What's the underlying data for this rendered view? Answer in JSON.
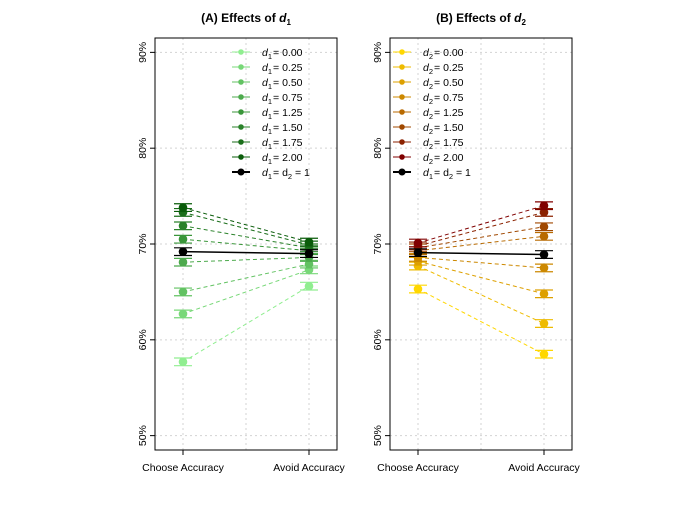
{
  "chart_data": [
    {
      "type": "line",
      "title_prefix": "(A) Effects of ",
      "title_var": "d",
      "title_sub": "1",
      "categories": [
        "Choose Accuracy",
        "Avoid Accuracy"
      ],
      "ylim": [
        48.5,
        91.5
      ],
      "yticks": [
        50,
        60,
        70,
        80,
        90
      ],
      "ytick_labels": [
        "50%",
        "60%",
        "70%",
        "80%",
        "90%"
      ],
      "grid": true,
      "legend_position": "top-right",
      "series": [
        {
          "name": "d1 = 0.00",
          "var": "d",
          "sub": "1",
          "rhs": "= 0.00",
          "color": "#90EE90",
          "values": [
            57.7,
            65.6
          ],
          "err": 0.4
        },
        {
          "name": "d1 = 0.25",
          "var": "d",
          "sub": "1",
          "rhs": "= 0.25",
          "color": "#78D878",
          "values": [
            62.7,
            67.3
          ],
          "err": 0.4
        },
        {
          "name": "d1 = 0.50",
          "var": "d",
          "sub": "1",
          "rhs": "= 0.50",
          "color": "#62C262",
          "values": [
            65.0,
            67.9
          ],
          "err": 0.4
        },
        {
          "name": "d1 = 0.75",
          "var": "d",
          "sub": "1",
          "rhs": "= 0.75",
          "color": "#4DAA4D",
          "values": [
            68.1,
            68.6
          ],
          "err": 0.4
        },
        {
          "name": "d1 = 1.25",
          "var": "d",
          "sub": "1",
          "rhs": "= 1.25",
          "color": "#3A963A",
          "values": [
            70.5,
            69.3
          ],
          "err": 0.4
        },
        {
          "name": "d1 = 1.50",
          "var": "d",
          "sub": "1",
          "rhs": "= 1.50",
          "color": "#2A822A",
          "values": [
            71.9,
            69.6
          ],
          "err": 0.4
        },
        {
          "name": "d1 = 1.75",
          "var": "d",
          "sub": "1",
          "rhs": "= 1.75",
          "color": "#1A6E1A",
          "values": [
            73.3,
            69.9
          ],
          "err": 0.4
        },
        {
          "name": "d1 = 2.00",
          "var": "d",
          "sub": "1",
          "rhs": "= 2.00",
          "color": "#0A5C0A",
          "values": [
            73.8,
            70.2
          ],
          "err": 0.4
        },
        {
          "name": "d1 = d2 = 1",
          "var": "d",
          "sub": "1",
          "rhs": "= d",
          "rhs_sub": "2",
          "rhs2": " = 1",
          "color": "#000000",
          "values": [
            69.2,
            69.0
          ],
          "err": 0.4,
          "solid": true
        }
      ]
    },
    {
      "type": "line",
      "title_prefix": "(B) Effects of ",
      "title_var": "d",
      "title_sub": "2",
      "categories": [
        "Choose Accuracy",
        "Avoid Accuracy"
      ],
      "ylim": [
        48.5,
        91.5
      ],
      "yticks": [
        50,
        60,
        70,
        80,
        90
      ],
      "ytick_labels": [
        "50%",
        "60%",
        "70%",
        "80%",
        "90%"
      ],
      "grid": true,
      "legend_position": "top-left",
      "series": [
        {
          "name": "d2 = 0.00",
          "var": "d",
          "sub": "2",
          "rhs": "= 0.00",
          "color": "#FFD700",
          "values": [
            65.3,
            58.5
          ],
          "err": 0.4
        },
        {
          "name": "d2 = 0.25",
          "var": "d",
          "sub": "2",
          "rhs": "= 0.25",
          "color": "#EEBB00",
          "values": [
            67.7,
            61.7
          ],
          "err": 0.4
        },
        {
          "name": "d2 = 0.50",
          "var": "d",
          "sub": "2",
          "rhs": "= 0.50",
          "color": "#DDA000",
          "values": [
            68.2,
            64.8
          ],
          "err": 0.4
        },
        {
          "name": "d2 = 0.75",
          "var": "d",
          "sub": "2",
          "rhs": "= 0.75",
          "color": "#CC8800",
          "values": [
            68.6,
            67.5
          ],
          "err": 0.4
        },
        {
          "name": "d2 = 1.25",
          "var": "d",
          "sub": "2",
          "rhs": "= 1.25",
          "color": "#B86A00",
          "values": [
            69.3,
            70.8
          ],
          "err": 0.4
        },
        {
          "name": "d2 = 1.50",
          "var": "d",
          "sub": "2",
          "rhs": "= 1.50",
          "color": "#A04800",
          "values": [
            69.6,
            71.8
          ],
          "err": 0.4
        },
        {
          "name": "d2 = 1.75",
          "var": "d",
          "sub": "2",
          "rhs": "= 1.75",
          "color": "#8B2200",
          "values": [
            69.8,
            73.3
          ],
          "err": 0.4
        },
        {
          "name": "d2 = 2.00",
          "var": "d",
          "sub": "2",
          "rhs": "= 2.00",
          "color": "#800000",
          "values": [
            70.1,
            74.0
          ],
          "err": 0.4
        },
        {
          "name": "d1 = d2 = 1",
          "var": "d",
          "sub": "1",
          "rhs": "= d",
          "rhs_sub": "2",
          "rhs2": " = 1",
          "color": "#000000",
          "values": [
            69.1,
            68.9
          ],
          "err": 0.4,
          "solid": true
        }
      ]
    }
  ]
}
